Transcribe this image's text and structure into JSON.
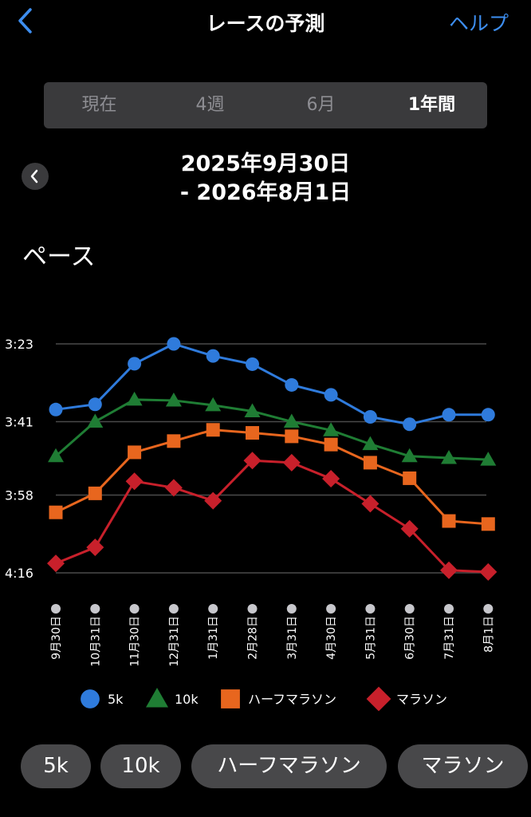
{
  "header": {
    "title": "レースの予測",
    "help_label": "ヘルプ"
  },
  "periods": [
    {
      "label": "現在",
      "active": false
    },
    {
      "label": "4週",
      "active": false
    },
    {
      "label": "6月",
      "active": false
    },
    {
      "label": "1年間",
      "active": true
    }
  ],
  "date_range": {
    "line1": "2025年9月30日",
    "line2": "- 2026年8月1日"
  },
  "metric_title": "ペース",
  "chart_data": {
    "type": "line",
    "title": "",
    "xlabel": "",
    "ylabel": "",
    "y_unit": "min:sec pace",
    "y_inverted": true,
    "ylim": [
      203,
      256
    ],
    "yticks": [
      {
        "label": "3:23",
        "value": 203
      },
      {
        "label": "3:41",
        "value": 221
      },
      {
        "label": "3:58",
        "value": 238
      },
      {
        "label": "4:16",
        "value": 256
      }
    ],
    "categories": [
      "9月30日",
      "10月31日",
      "11月30日",
      "12月31日",
      "1月31日",
      "2月28日",
      "3月31日",
      "4月30日",
      "5月31日",
      "6月30日",
      "7月31日",
      "8月1日"
    ],
    "grid": true,
    "legend_position": "bottom",
    "series": [
      {
        "name": "5k",
        "color": "#2f7bdc",
        "marker": "circle",
        "values": [
          218.2,
          217.0,
          207.6,
          203.0,
          205.8,
          207.7,
          212.5,
          214.8,
          219.9,
          221.6,
          219.4,
          219.4
        ]
      },
      {
        "name": "10k",
        "color": "#1f7d34",
        "marker": "triangle",
        "values": [
          229.0,
          221.0,
          215.9,
          216.1,
          217.2,
          218.6,
          221.0,
          223.0,
          226.2,
          229.0,
          229.4,
          229.8
        ]
      },
      {
        "name": "ハーフマラソン",
        "color": "#e8661e",
        "marker": "square",
        "values": [
          242.0,
          237.6,
          228.1,
          225.5,
          222.9,
          223.6,
          224.4,
          226.3,
          230.5,
          234.1,
          244.0,
          244.7
        ]
      },
      {
        "name": "マラソン",
        "color": "#c8202b",
        "marker": "diamond",
        "values": [
          253.8,
          250.1,
          234.8,
          236.3,
          239.3,
          230.0,
          230.5,
          234.2,
          240.0,
          245.8,
          255.4,
          255.8
        ]
      }
    ]
  },
  "filters": [
    {
      "label": "5k"
    },
    {
      "label": "10k"
    },
    {
      "label": "ハーフマラソン"
    },
    {
      "label": "マラソン"
    }
  ]
}
